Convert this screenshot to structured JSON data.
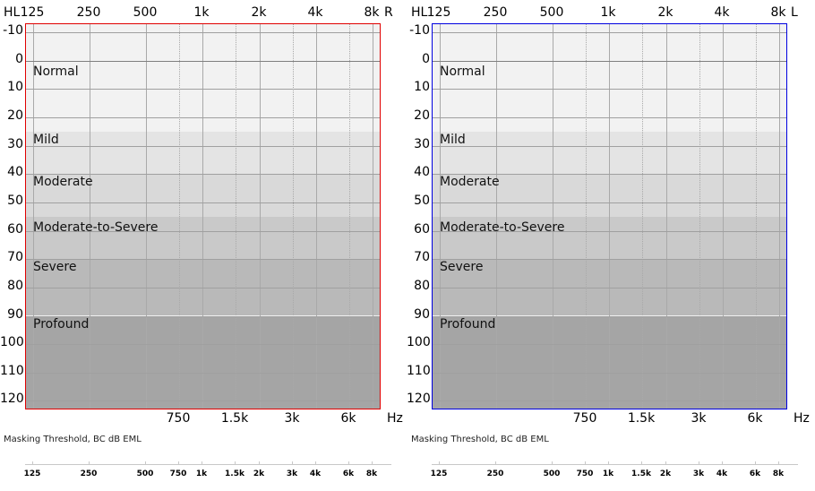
{
  "chart_data": [
    {
      "type": "table",
      "title": "Audiogram Right Ear",
      "ear_label": "R",
      "border_color": "#e00000",
      "y_unit_label": "HL",
      "x_unit_label": "Hz",
      "ylim": [
        -10,
        120
      ],
      "yticks": [
        -10,
        0,
        10,
        20,
        30,
        40,
        50,
        60,
        70,
        80,
        90,
        100,
        110,
        120
      ],
      "xticks_top": [
        "125",
        "250",
        "500",
        "1k",
        "2k",
        "4k",
        "8k"
      ],
      "xticks_bottom": [
        "750",
        "1.5k",
        "3k",
        "6k"
      ],
      "grid": true,
      "bands": [
        {
          "name": "Normal",
          "from": -10,
          "to": 25
        },
        {
          "name": "Mild",
          "from": 25,
          "to": 40
        },
        {
          "name": "Moderate",
          "from": 40,
          "to": 55
        },
        {
          "name": "Moderate-to-Severe",
          "from": 55,
          "to": 70
        },
        {
          "name": "Severe",
          "from": 70,
          "to": 90
        },
        {
          "name": "Profound",
          "from": 90,
          "to": 120
        }
      ],
      "series": []
    },
    {
      "type": "table",
      "title": "Audiogram Left Ear",
      "ear_label": "L",
      "border_color": "#0000e0",
      "y_unit_label": "HL",
      "x_unit_label": "Hz",
      "ylim": [
        -10,
        120
      ],
      "yticks": [
        -10,
        0,
        10,
        20,
        30,
        40,
        50,
        60,
        70,
        80,
        90,
        100,
        110,
        120
      ],
      "xticks_top": [
        "125",
        "250",
        "500",
        "1k",
        "2k",
        "4k",
        "8k"
      ],
      "xticks_bottom": [
        "750",
        "1.5k",
        "3k",
        "6k"
      ],
      "grid": true,
      "bands": [
        {
          "name": "Normal",
          "from": -10,
          "to": 25
        },
        {
          "name": "Mild",
          "from": 25,
          "to": 40
        },
        {
          "name": "Moderate",
          "from": 40,
          "to": 55
        },
        {
          "name": "Moderate-to-Severe",
          "from": 55,
          "to": 70
        },
        {
          "name": "Severe",
          "from": 70,
          "to": 90
        },
        {
          "name": "Profound",
          "from": 90,
          "to": 120
        }
      ],
      "series": []
    }
  ],
  "panels": [
    {
      "ear": "R",
      "hl": "HL",
      "hz": "Hz",
      "border": "#e00000",
      "masking_title": "Masking Threshold, BC dB EML",
      "yticks": [
        "-10",
        "0",
        "10",
        "20",
        "30",
        "40",
        "50",
        "60",
        "70",
        "80",
        "90",
        "100",
        "110",
        "120"
      ],
      "xtop": [
        "125",
        "250",
        "500",
        "1k",
        "2k",
        "4k",
        "8k"
      ],
      "xbot": [
        "750",
        "1.5k",
        "3k",
        "6k"
      ],
      "bands": [
        "Normal",
        "Mild",
        "Moderate",
        "Moderate-to-Severe",
        "Severe",
        "Profound"
      ],
      "mask_labels": [
        "125",
        "250",
        "500",
        "750",
        "1k",
        "1.5k",
        "2k",
        "3k",
        "4k",
        "6k",
        "8k"
      ]
    },
    {
      "ear": "L",
      "hl": "HL",
      "hz": "Hz",
      "border": "#0000e0",
      "masking_title": "Masking Threshold, BC dB EML",
      "yticks": [
        "-10",
        "0",
        "10",
        "20",
        "30",
        "40",
        "50",
        "60",
        "70",
        "80",
        "90",
        "100",
        "110",
        "120"
      ],
      "xtop": [
        "125",
        "250",
        "500",
        "1k",
        "2k",
        "4k",
        "8k"
      ],
      "xbot": [
        "750",
        "1.5k",
        "3k",
        "6k"
      ],
      "bands": [
        "Normal",
        "Mild",
        "Moderate",
        "Moderate-to-Severe",
        "Severe",
        "Profound"
      ],
      "mask_labels": [
        "125",
        "250",
        "500",
        "750",
        "1k",
        "1.5k",
        "2k",
        "3k",
        "4k",
        "6k",
        "8k"
      ]
    }
  ],
  "colors": {
    "band_normal": "#f2f2f2",
    "band_mild": "#e4e4e4",
    "band_moderate": "#d9d9d9",
    "band_modsev": "#c9c9c9",
    "band_severe": "#b9b9b9",
    "band_profound": "#a5a5a5"
  }
}
